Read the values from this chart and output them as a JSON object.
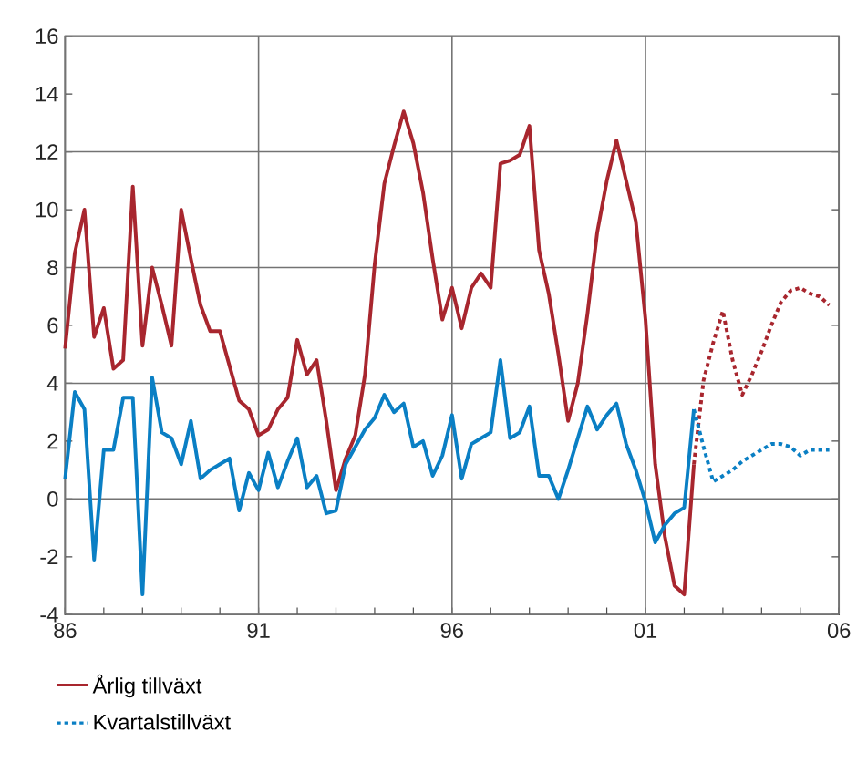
{
  "chart_data": {
    "type": "line",
    "xlim": [
      1986,
      2006
    ],
    "xticks": [
      {
        "value": 1986,
        "label": "86"
      },
      {
        "value": 1987,
        "label": null
      },
      {
        "value": 1988,
        "label": null
      },
      {
        "value": 1989,
        "label": null
      },
      {
        "value": 1990,
        "label": null
      },
      {
        "value": 1991,
        "label": "91"
      },
      {
        "value": 1992,
        "label": null
      },
      {
        "value": 1993,
        "label": null
      },
      {
        "value": 1994,
        "label": null
      },
      {
        "value": 1995,
        "label": null
      },
      {
        "value": 1996,
        "label": "96"
      },
      {
        "value": 1997,
        "label": null
      },
      {
        "value": 1998,
        "label": null
      },
      {
        "value": 1999,
        "label": null
      },
      {
        "value": 2000,
        "label": null
      },
      {
        "value": 2001,
        "label": "01"
      },
      {
        "value": 2002,
        "label": null
      },
      {
        "value": 2003,
        "label": null
      },
      {
        "value": 2004,
        "label": null
      },
      {
        "value": 2005,
        "label": null
      },
      {
        "value": 2006,
        "label": "06"
      }
    ],
    "ylim": [
      -4,
      16
    ],
    "yticks": [
      -4,
      -2,
      0,
      2,
      4,
      6,
      8,
      10,
      12,
      14,
      16
    ],
    "grid": true,
    "legend": "bottom",
    "series": [
      {
        "name": "Årlig tillväxt",
        "color": "#a8262e",
        "line_style": "solid",
        "x": [
          1986,
          1986.25,
          1986.5,
          1986.75,
          1987,
          1987.25,
          1987.5,
          1987.75,
          1988,
          1988.25,
          1988.5,
          1988.75,
          1989,
          1989.25,
          1989.5,
          1989.75,
          1990,
          1990.25,
          1990.5,
          1990.75,
          1991,
          1991.25,
          1991.5,
          1991.75,
          1992,
          1992.25,
          1992.5,
          1992.75,
          1993,
          1993.25,
          1993.5,
          1993.75,
          1994,
          1994.25,
          1994.5,
          1994.75,
          1995,
          1995.25,
          1995.5,
          1995.75,
          1996,
          1996.25,
          1996.5,
          1996.75,
          1997,
          1997.25,
          1997.5,
          1997.75,
          1998,
          1998.25,
          1998.5,
          1998.75,
          1999,
          1999.25,
          1999.5,
          1999.75,
          2000,
          2000.25,
          2000.5,
          2000.75,
          2001,
          2001.25,
          2001.5,
          2001.75,
          2002,
          2002.25
        ],
        "values": [
          5.2,
          8.5,
          10.0,
          5.6,
          6.6,
          4.5,
          4.8,
          10.8,
          5.3,
          8.0,
          6.7,
          5.3,
          10.0,
          8.3,
          6.7,
          5.8,
          5.8,
          4.6,
          3.4,
          3.1,
          2.2,
          2.4,
          3.1,
          3.5,
          5.5,
          4.3,
          4.8,
          2.7,
          0.3,
          1.4,
          2.2,
          4.3,
          8.1,
          10.9,
          12.2,
          13.4,
          12.3,
          10.6,
          8.3,
          6.2,
          7.3,
          5.9,
          7.3,
          7.8,
          7.3,
          11.6,
          11.7,
          11.9,
          12.9,
          8.6,
          7.1,
          5.0,
          2.7,
          4.0,
          6.4,
          9.2,
          11.0,
          12.4,
          11.0,
          9.6,
          6.2,
          1.2,
          -1.3,
          -3.0,
          -3.3,
          1.2
        ]
      },
      {
        "color": "#a8262e",
        "line_style": "dotted",
        "x": [
          2002.25,
          2002.5,
          2002.75,
          2003,
          2003.25,
          2003.5,
          2003.75,
          2004,
          2004.25,
          2004.5,
          2004.75,
          2005,
          2005.25,
          2005.5,
          2005.75
        ],
        "values": [
          1.2,
          4.1,
          5.4,
          6.5,
          4.8,
          3.6,
          4.3,
          5.1,
          6.0,
          6.8,
          7.2,
          7.3,
          7.1,
          7.0,
          6.7
        ]
      },
      {
        "color": "#0a7fc4",
        "line_style": "solid",
        "x": [
          1986,
          1986.25,
          1986.5,
          1986.75,
          1987,
          1987.25,
          1987.5,
          1987.75,
          1988,
          1988.25,
          1988.5,
          1988.75,
          1989,
          1989.25,
          1989.5,
          1989.75,
          1990,
          1990.25,
          1990.5,
          1990.75,
          1991,
          1991.25,
          1991.5,
          1991.75,
          1992,
          1992.25,
          1992.5,
          1992.75,
          1993,
          1993.25,
          1993.5,
          1993.75,
          1994,
          1994.25,
          1994.5,
          1994.75,
          1995,
          1995.25,
          1995.5,
          1995.75,
          1996,
          1996.25,
          1996.5,
          1996.75,
          1997,
          1997.25,
          1997.5,
          1997.75,
          1998,
          1998.25,
          1998.5,
          1998.75,
          1999,
          1999.25,
          1999.5,
          1999.75,
          2000,
          2000.25,
          2000.5,
          2000.75,
          2001,
          2001.25,
          2001.5,
          2001.75,
          2002,
          2002.25
        ],
        "values": [
          0.7,
          3.7,
          3.1,
          -2.1,
          1.7,
          1.7,
          3.5,
          3.5,
          -3.3,
          4.2,
          2.3,
          2.1,
          1.2,
          2.7,
          0.7,
          1.0,
          1.2,
          1.4,
          -0.4,
          0.9,
          0.3,
          1.6,
          0.4,
          1.3,
          2.1,
          0.4,
          0.8,
          -0.5,
          -0.4,
          1.2,
          1.8,
          2.4,
          2.8,
          3.6,
          3.0,
          3.3,
          1.8,
          2.0,
          0.8,
          1.5,
          2.9,
          0.7,
          1.9,
          2.1,
          2.3,
          4.8,
          2.1,
          2.3,
          3.2,
          0.8,
          0.8,
          0.0,
          1.0,
          2.1,
          3.2,
          2.4,
          2.9,
          3.3,
          1.9,
          1.0,
          -0.1,
          -1.5,
          -0.9,
          -0.5,
          -0.3,
          3.1
        ]
      },
      {
        "name": "Kvartalstillväxt",
        "color": "#0a7fc4",
        "line_style": "dotted",
        "x": [
          2002.25,
          2002.5,
          2002.75,
          2003,
          2003.25,
          2003.5,
          2003.75,
          2004,
          2004.25,
          2004.5,
          2004.75,
          2005,
          2005.25,
          2005.5,
          2005.75
        ],
        "values": [
          3.1,
          1.8,
          0.6,
          0.8,
          1.0,
          1.3,
          1.5,
          1.7,
          1.9,
          1.9,
          1.8,
          1.5,
          1.7,
          1.7,
          1.7
        ]
      }
    ]
  }
}
